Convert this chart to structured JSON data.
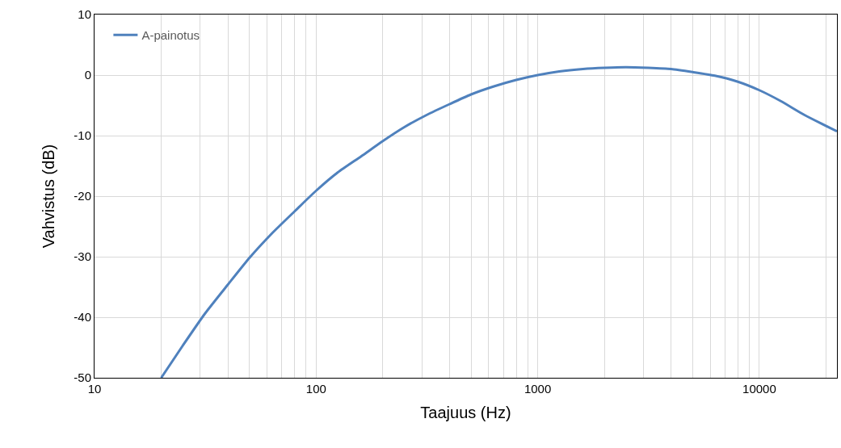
{
  "chart_data": {
    "type": "line",
    "xlabel": "Taajuus (Hz)",
    "ylabel": "Vahvistus (dB)",
    "log": "x",
    "grid": true,
    "legend": "top left",
    "line_style": "solid",
    "marker": "none",
    "xlim": [
      10,
      22400
    ],
    "ylim": [
      -50,
      10
    ],
    "xticks": [
      10,
      {
        "value": 20,
        "label": null
      },
      {
        "value": 30,
        "label": null
      },
      {
        "value": 40,
        "label": null
      },
      {
        "value": 50,
        "label": null
      },
      {
        "value": 60,
        "label": null
      },
      {
        "value": 70,
        "label": null
      },
      {
        "value": 80,
        "label": null
      },
      {
        "value": 90,
        "label": null
      },
      100,
      {
        "value": 200,
        "label": null
      },
      {
        "value": 300,
        "label": null
      },
      {
        "value": 400,
        "label": null
      },
      {
        "value": 500,
        "label": null
      },
      {
        "value": 600,
        "label": null
      },
      {
        "value": 700,
        "label": null
      },
      {
        "value": 800,
        "label": null
      },
      {
        "value": 900,
        "label": null
      },
      1000,
      {
        "value": 2000,
        "label": null
      },
      {
        "value": 3000,
        "label": null
      },
      {
        "value": 4000,
        "label": null
      },
      {
        "value": 5000,
        "label": null
      },
      {
        "value": 6000,
        "label": null
      },
      {
        "value": 7000,
        "label": null
      },
      {
        "value": 8000,
        "label": null
      },
      {
        "value": 9000,
        "label": null
      },
      10000,
      {
        "value": 20000,
        "label": null
      }
    ],
    "yticks": [
      -50,
      -40,
      -30,
      -20,
      -10,
      0,
      10
    ],
    "x": [
      20,
      25,
      31.5,
      40,
      50,
      63,
      80,
      100,
      125,
      160,
      200,
      250,
      315,
      400,
      500,
      630,
      800,
      1000,
      1250,
      1600,
      2000,
      2500,
      3150,
      4000,
      5000,
      6300,
      8000,
      10000,
      12500,
      16000,
      22400
    ],
    "series": [
      {
        "name": "A-painotus",
        "color": "#4f81bd",
        "values": [
          -50,
          -44.7,
          -39.4,
          -34.6,
          -30.2,
          -26.2,
          -22.5,
          -19.1,
          -16.1,
          -13.4,
          -10.9,
          -8.6,
          -6.6,
          -4.8,
          -3.2,
          -1.9,
          -0.8,
          0,
          0.6,
          1,
          1.2,
          1.3,
          1.2,
          1,
          0.5,
          -0.1,
          -1.1,
          -2.5,
          -4.3,
          -6.6,
          -9.3
        ]
      }
    ]
  }
}
